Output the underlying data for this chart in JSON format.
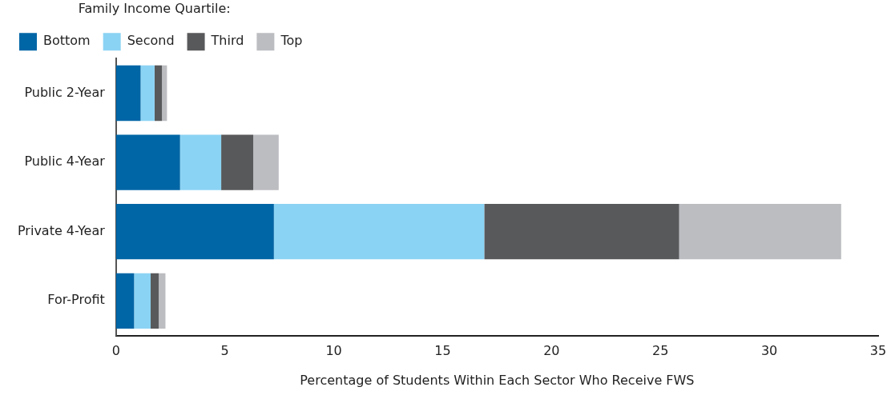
{
  "chart_data": {
    "type": "bar",
    "orientation": "horizontal",
    "stacked": true,
    "xlabel": "Percentage of Students Within Each Sector Who Receive FWS",
    "legend_title": "Family Income Quartile:",
    "legend": "top left",
    "grid": false,
    "categories": [
      "Public 2-Year",
      "Public 4-Year",
      "Private 4-Year",
      "For-Profit"
    ],
    "xlim": [
      0,
      35
    ],
    "xticks": [
      0,
      5,
      10,
      15,
      20,
      25,
      30,
      35
    ],
    "series": [
      {
        "name": "Bottom",
        "color": "#0066a6",
        "values": [
          1.13,
          2.94,
          7.25,
          0.83
        ]
      },
      {
        "name": "Second",
        "color": "#8bd3f4",
        "values": [
          0.64,
          1.89,
          9.66,
          0.76
        ]
      },
      {
        "name": "Third",
        "color": "#58595b",
        "values": [
          0.34,
          1.47,
          8.95,
          0.37
        ]
      },
      {
        "name": "Top",
        "color": "#bcbdc1",
        "values": [
          0.23,
          1.17,
          7.44,
          0.31
        ]
      }
    ]
  }
}
